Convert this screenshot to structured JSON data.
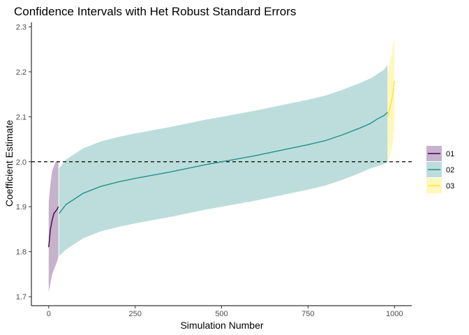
{
  "chart_data": {
    "type": "line",
    "title": "Confidence Intervals with Het Robust Standard Errors",
    "xlabel": "Simulation Number",
    "ylabel": "Coefficient Estimate",
    "xlim": [
      -50,
      1050
    ],
    "ylim": [
      1.68,
      2.31
    ],
    "x_ticks": [
      0,
      250,
      500,
      750,
      1000
    ],
    "x_tick_labels": [
      "0",
      "250",
      "500",
      "750",
      "1000"
    ],
    "y_ticks": [
      1.7,
      1.8,
      1.9,
      2.0,
      2.1,
      2.2,
      2.3
    ],
    "y_tick_labels": [
      "1.7",
      "1.8",
      "1.9",
      "2.0",
      "2.1",
      "2.2",
      "2.3"
    ],
    "reference_line": {
      "y": 2.0,
      "style": "dashed"
    },
    "grid": false,
    "legend_position": "right",
    "series": [
      {
        "name": "01",
        "color": "#440154",
        "x": [
          0,
          5,
          10,
          15,
          20,
          25,
          28
        ],
        "y": [
          1.81,
          1.85,
          1.87,
          1.885,
          1.89,
          1.895,
          1.9
        ],
        "ci_low": [
          1.71,
          1.73,
          1.75,
          1.76,
          1.77,
          1.78,
          1.79
        ],
        "ci_high": [
          1.91,
          1.95,
          1.98,
          1.99,
          2.0,
          2.0,
          2.0
        ]
      },
      {
        "name": "02",
        "color": "#21908C",
        "x": [
          30,
          50,
          100,
          150,
          200,
          250,
          300,
          350,
          400,
          450,
          500,
          550,
          600,
          650,
          700,
          750,
          800,
          850,
          900,
          930,
          950,
          970,
          980
        ],
        "y": [
          1.885,
          1.905,
          1.93,
          1.945,
          1.955,
          1.963,
          1.97,
          1.977,
          1.985,
          1.993,
          2.0,
          2.007,
          2.014,
          2.022,
          2.03,
          2.038,
          2.047,
          2.06,
          2.075,
          2.085,
          2.095,
          2.103,
          2.11
        ],
        "ci_low": [
          1.79,
          1.805,
          1.83,
          1.845,
          1.855,
          1.863,
          1.87,
          1.877,
          1.885,
          1.893,
          1.9,
          1.907,
          1.914,
          1.922,
          1.93,
          1.938,
          1.947,
          1.96,
          1.975,
          1.985,
          1.99,
          1.995,
          2.0
        ],
        "ci_high": [
          1.985,
          2.005,
          2.03,
          2.045,
          2.055,
          2.063,
          2.07,
          2.077,
          2.085,
          2.093,
          2.1,
          2.107,
          2.114,
          2.122,
          2.13,
          2.138,
          2.147,
          2.16,
          2.175,
          2.185,
          2.195,
          2.205,
          2.215
        ]
      },
      {
        "name": "03",
        "color": "#FDE725",
        "x": [
          981,
          985,
          990,
          995,
          1000
        ],
        "y": [
          2.1,
          2.115,
          2.13,
          2.15,
          2.18
        ],
        "ci_low": [
          2.0,
          2.01,
          2.02,
          2.04,
          2.08
        ],
        "ci_high": [
          2.2,
          2.215,
          2.235,
          2.255,
          2.28
        ]
      }
    ]
  }
}
